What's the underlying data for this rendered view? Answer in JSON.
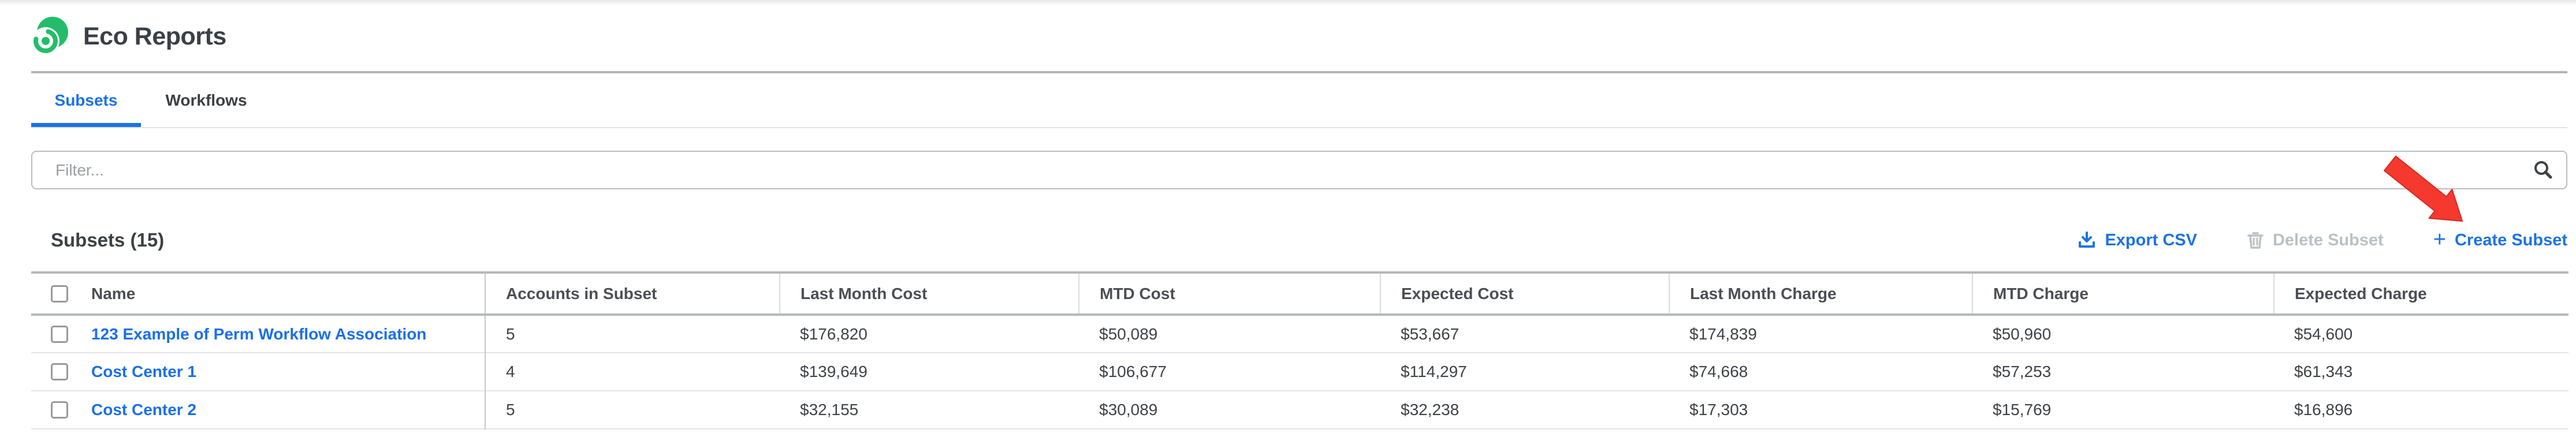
{
  "header": {
    "title": "Eco Reports",
    "logo_icon": "eco-green-swirl-logo"
  },
  "tabs": [
    {
      "label": "Subsets",
      "active": true
    },
    {
      "label": "Workflows",
      "active": false
    }
  ],
  "filter": {
    "placeholder": "Filter...",
    "value": "",
    "icon": "search-icon"
  },
  "toolbar": {
    "heading": "Subsets (15)",
    "export_csv": "Export CSV",
    "export_icon": "download-icon",
    "delete_subset": "Delete Subset",
    "delete_icon": "trash-icon",
    "delete_enabled": false,
    "create_subset": "Create Subset",
    "create_icon": "plus-icon",
    "plus_glyph": "+"
  },
  "annotation": {
    "type": "red-arrow",
    "points_at": "Create Subset"
  },
  "table": {
    "columns": [
      "Name",
      "Accounts in Subset",
      "Last Month Cost",
      "MTD Cost",
      "Expected Cost",
      "Last Month Charge",
      "MTD Charge",
      "Expected Charge"
    ],
    "rows": [
      {
        "checked": false,
        "name": "123 Example of Perm Workflow Association",
        "accounts": "5",
        "last_month_cost": "$176,820",
        "mtd_cost": "$50,089",
        "expected_cost": "$53,667",
        "last_month_charge": "$174,839",
        "mtd_charge": "$50,960",
        "expected_charge": "$54,600"
      },
      {
        "checked": false,
        "name": "Cost Center 1",
        "accounts": "4",
        "last_month_cost": "$139,649",
        "mtd_cost": "$106,677",
        "expected_cost": "$114,297",
        "last_month_charge": "$74,668",
        "mtd_charge": "$57,253",
        "expected_charge": "$61,343"
      },
      {
        "checked": false,
        "name": "Cost Center 2",
        "accounts": "5",
        "last_month_cost": "$32,155",
        "mtd_cost": "$30,089",
        "expected_cost": "$32,238",
        "last_month_charge": "$17,303",
        "mtd_charge": "$15,769",
        "expected_charge": "$16,896"
      }
    ]
  },
  "colors": {
    "accent_blue": "#1b72e8",
    "brand_green": "#23bd6a",
    "arrow_red": "#f5392f",
    "disabled_gray": "#bcc0c4",
    "text_dark": "#3f4248"
  }
}
